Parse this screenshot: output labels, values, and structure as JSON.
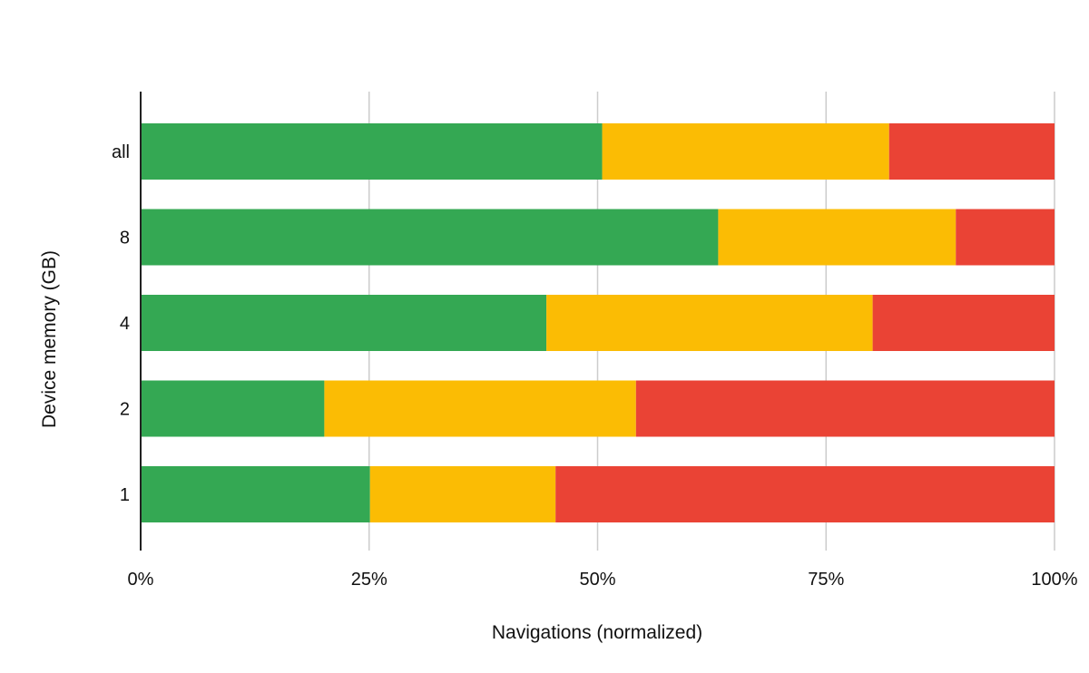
{
  "chart_data": {
    "type": "bar",
    "orientation": "horizontal",
    "stacked": true,
    "categories": [
      "all",
      "8",
      "4",
      "2",
      "1"
    ],
    "series": [
      {
        "color": "#34a853",
        "values": [
          50.5,
          63.2,
          44.4,
          20.1,
          25.1
        ]
      },
      {
        "color": "#fbbc04",
        "values": [
          31.4,
          26.0,
          35.7,
          34.1,
          20.3
        ]
      },
      {
        "color": "#ea4335",
        "values": [
          18.1,
          10.8,
          19.9,
          45.8,
          54.6
        ]
      }
    ],
    "xlabel": "Navigations (normalized)",
    "ylabel": "Device memory (GB)",
    "xlim": [
      0,
      100
    ],
    "x_ticks": [
      0,
      25,
      50,
      75,
      100
    ],
    "x_tick_labels": [
      "0%",
      "25%",
      "50%",
      "75%",
      "100%"
    ],
    "grid": "vertical",
    "legend": "none"
  }
}
